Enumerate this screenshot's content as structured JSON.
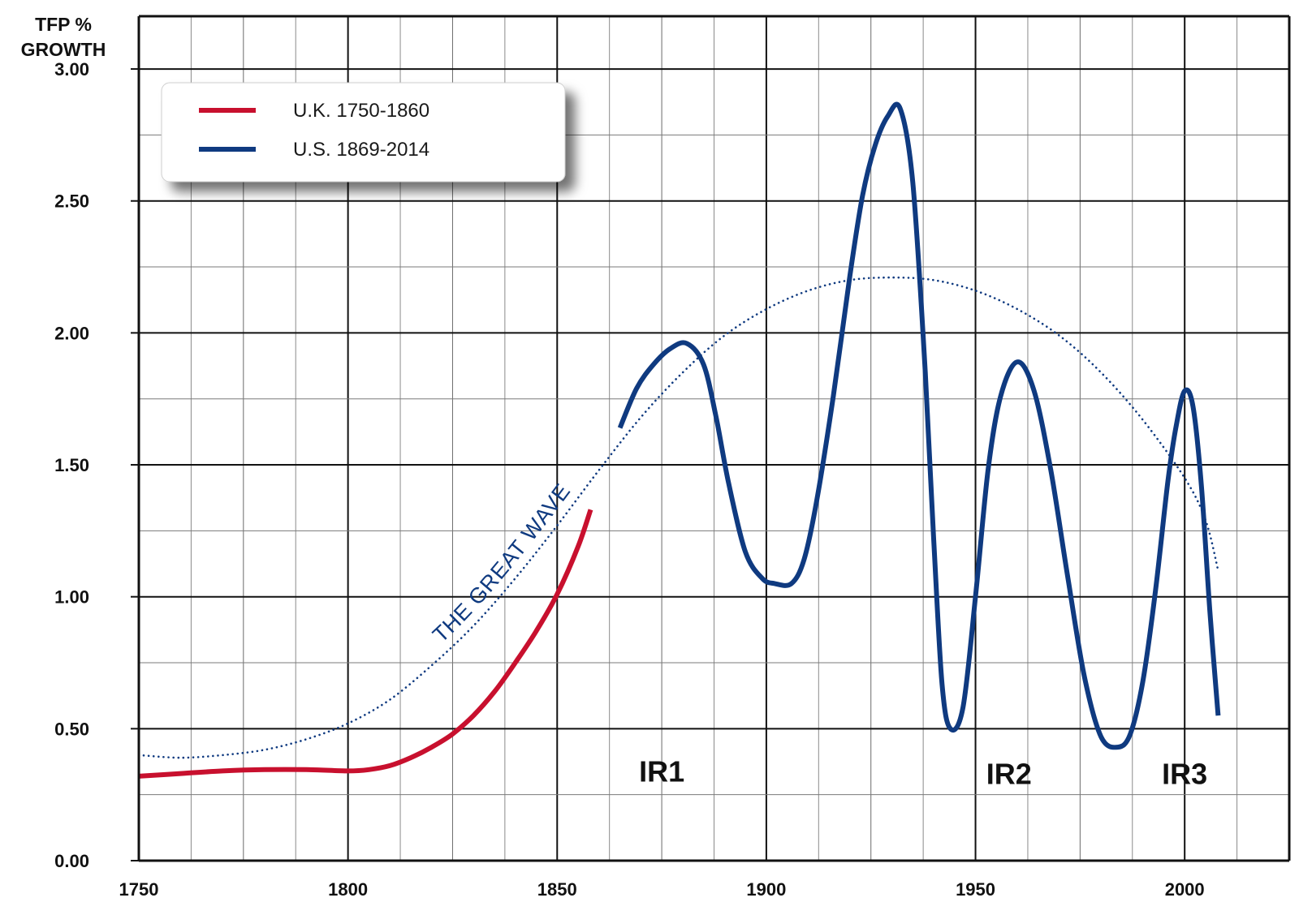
{
  "chart_data": {
    "type": "line",
    "ylabel_lines": [
      "TFP %",
      "GROWTH"
    ],
    "xlim": [
      1750,
      2025
    ],
    "ylim": [
      0,
      3.2
    ],
    "x_ticks": [
      "1750",
      "1800",
      "1850",
      "1900",
      "1950",
      "2000"
    ],
    "y_ticks": [
      "0.00",
      "0.50",
      "1.00",
      "1.50",
      "2.00",
      "2.50",
      "3.00"
    ],
    "grid": true,
    "legend_position": "top-left",
    "series": [
      {
        "name": "U.K. 1750-1860",
        "color": "#c8102e",
        "style": "solid",
        "x": [
          1750,
          1760,
          1770,
          1780,
          1790,
          1800,
          1805,
          1810,
          1815,
          1820,
          1825,
          1830,
          1835,
          1840,
          1845,
          1850,
          1855,
          1858
        ],
        "y": [
          0.32,
          0.33,
          0.34,
          0.345,
          0.345,
          0.34,
          0.345,
          0.36,
          0.39,
          0.43,
          0.48,
          0.55,
          0.64,
          0.75,
          0.87,
          1.01,
          1.19,
          1.33
        ]
      },
      {
        "name": "U.S. 1869-2014",
        "color": "#0f3a80",
        "style": "solid",
        "x": [
          1865,
          1869,
          1873,
          1877,
          1881,
          1885,
          1888,
          1891,
          1895,
          1899,
          1902,
          1906,
          1909,
          1912,
          1916,
          1920,
          1923,
          1926,
          1929,
          1932,
          1935,
          1938,
          1940,
          1942,
          1944,
          1947,
          1950,
          1953,
          1956,
          1960,
          1964,
          1968,
          1972,
          1976,
          1980,
          1984,
          1987,
          1990,
          1993,
          1996,
          1998,
          2000,
          2002,
          2004,
          2006,
          2008
        ],
        "y": [
          1.64,
          1.79,
          1.88,
          1.94,
          1.96,
          1.88,
          1.68,
          1.43,
          1.17,
          1.07,
          1.05,
          1.05,
          1.14,
          1.36,
          1.76,
          2.22,
          2.52,
          2.71,
          2.82,
          2.85,
          2.57,
          1.85,
          1.22,
          0.67,
          0.5,
          0.58,
          1.0,
          1.48,
          1.76,
          1.89,
          1.78,
          1.48,
          1.08,
          0.7,
          0.47,
          0.43,
          0.48,
          0.68,
          1.02,
          1.44,
          1.65,
          1.78,
          1.72,
          1.42,
          0.95,
          0.55
        ]
      },
      {
        "name": "",
        "color": "#0f3a80",
        "style": "dotted",
        "x": [
          1750,
          1760,
          1770,
          1780,
          1790,
          1800,
          1810,
          1820,
          1830,
          1840,
          1850,
          1860,
          1870,
          1880,
          1890,
          1900,
          1910,
          1920,
          1930,
          1940,
          1950,
          1960,
          1970,
          1980,
          1990,
          2000,
          2005,
          2008
        ],
        "y": [
          0.4,
          0.39,
          0.4,
          0.42,
          0.46,
          0.52,
          0.61,
          0.74,
          0.89,
          1.07,
          1.27,
          1.48,
          1.68,
          1.85,
          1.99,
          2.09,
          2.16,
          2.2,
          2.21,
          2.2,
          2.16,
          2.09,
          1.99,
          1.85,
          1.67,
          1.45,
          1.29,
          1.1
        ]
      }
    ],
    "annotations": [
      {
        "text": "THE GREAT WAVE",
        "type": "curve-label",
        "color": "#0f3a80"
      },
      {
        "text": "IR1",
        "x": 1875,
        "y": 0.3
      },
      {
        "text": "IR2",
        "x": 1958,
        "y": 0.29
      },
      {
        "text": "IR3",
        "x": 2000,
        "y": 0.29
      }
    ]
  }
}
